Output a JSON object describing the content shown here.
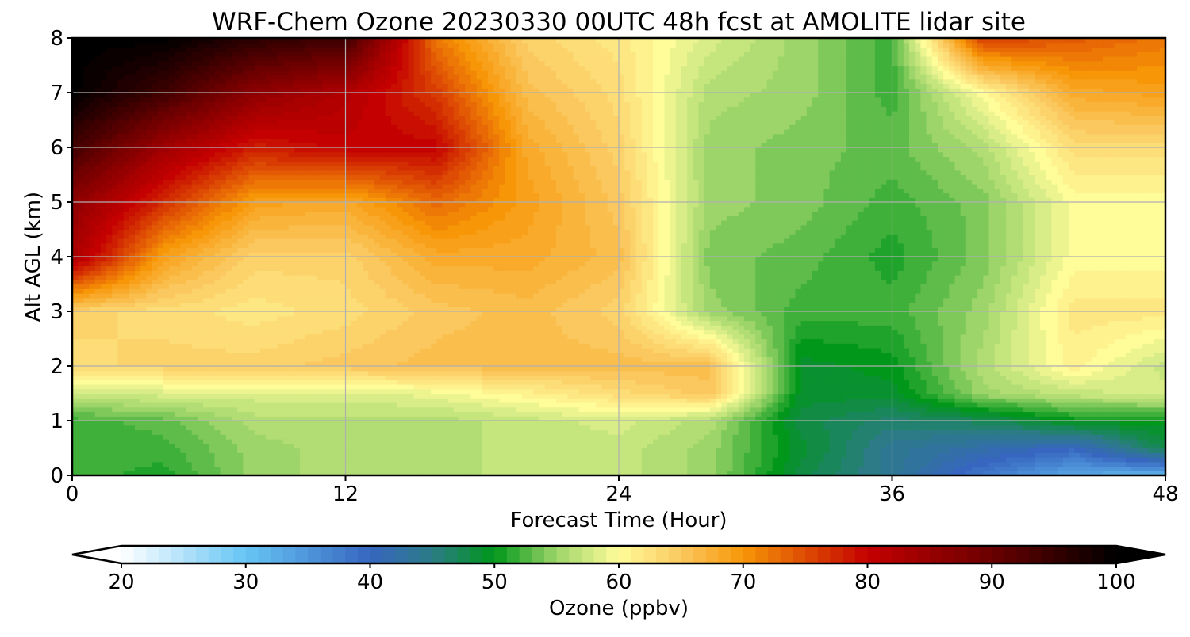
{
  "chart_data": {
    "type": "heatmap",
    "title": "WRF-Chem Ozone  20230330 00UTC 48h fcst at AMOLITE lidar site",
    "xlabel": "Forecast Time (Hour)",
    "ylabel": "Alt AGL (km)",
    "xlim": [
      0,
      48
    ],
    "ylim": [
      0,
      8
    ],
    "x_ticks": [
      "0",
      "12",
      "24",
      "36",
      "48"
    ],
    "y_ticks": [
      "0",
      "1",
      "2",
      "3",
      "4",
      "5",
      "6",
      "7",
      "8"
    ],
    "grid": true,
    "x": [
      0,
      4,
      8,
      12,
      16,
      20,
      24,
      28,
      32,
      36,
      40,
      44,
      48
    ],
    "y": [
      0,
      0.5,
      1,
      1.5,
      2,
      3,
      4,
      5,
      6,
      7,
      8
    ],
    "z_units": "ppbv",
    "z": [
      [
        52,
        51,
        55,
        56,
        56,
        57,
        57,
        55,
        48,
        44,
        38,
        33,
        32
      ],
      [
        52,
        52,
        55,
        56,
        56,
        57,
        57,
        55,
        49,
        44,
        42,
        40,
        48
      ],
      [
        52,
        53,
        56,
        56,
        56,
        57,
        58,
        56,
        48,
        46,
        47,
        50,
        50
      ],
      [
        57,
        58,
        58,
        58,
        59,
        61,
        63,
        65,
        49,
        49,
        55,
        57,
        58
      ],
      [
        63,
        64,
        64,
        65,
        66,
        66,
        66,
        66,
        49,
        50,
        56,
        61,
        57
      ],
      [
        64,
        63,
        62,
        63,
        65,
        66,
        64,
        55,
        52,
        52,
        55,
        62,
        62
      ],
      [
        83,
        69,
        64,
        64,
        68,
        68,
        66,
        54,
        53,
        51,
        54,
        60,
        60
      ],
      [
        86,
        77,
        69,
        68,
        73,
        69,
        65,
        55,
        54,
        52,
        54,
        60,
        60
      ],
      [
        94,
        84,
        78,
        80,
        80,
        68,
        64,
        55,
        54,
        53,
        56,
        63,
        63
      ],
      [
        100,
        94,
        86,
        82,
        76,
        66,
        63,
        56,
        55,
        52,
        60,
        68,
        69
      ],
      [
        100,
        100,
        96,
        94,
        72,
        64,
        62,
        58,
        55,
        52,
        76,
        74,
        72
      ]
    ],
    "colorbar": {
      "label": "Ozone  (ppbv)",
      "min": 20,
      "max": 100,
      "ticks": [
        "20",
        "30",
        "40",
        "50",
        "60",
        "70",
        "80",
        "90",
        "100"
      ],
      "extend": "both",
      "colors": [
        {
          "v": 20,
          "c": "#ffffff"
        },
        {
          "v": 30,
          "c": "#66c5f4"
        },
        {
          "v": 40,
          "c": "#3766c0"
        },
        {
          "v": 45,
          "c": "#2c7b86"
        },
        {
          "v": 50,
          "c": "#00971a"
        },
        {
          "v": 55,
          "c": "#9ed56a"
        },
        {
          "v": 60,
          "c": "#fffc9a"
        },
        {
          "v": 65,
          "c": "#fbc85f"
        },
        {
          "v": 70,
          "c": "#f79607"
        },
        {
          "v": 80,
          "c": "#c40000"
        },
        {
          "v": 90,
          "c": "#6a0000"
        },
        {
          "v": 100,
          "c": "#000000"
        }
      ]
    }
  }
}
